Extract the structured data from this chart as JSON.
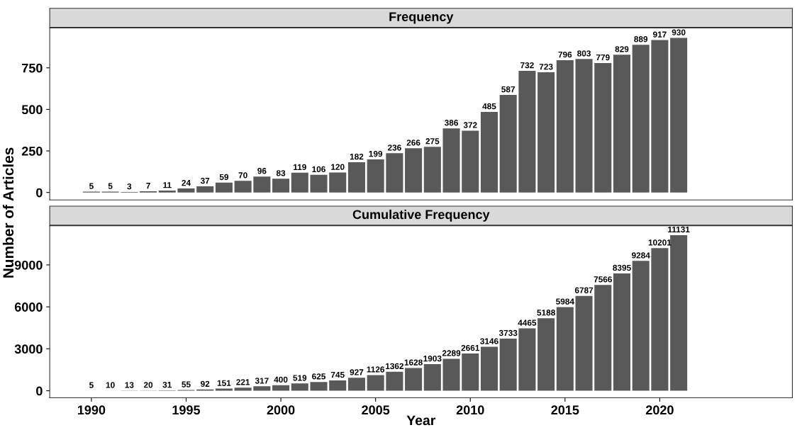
{
  "chart_data": [
    {
      "type": "bar",
      "title": "Frequency",
      "ylabel": "Number of Articles",
      "x": [
        1990,
        1991,
        1992,
        1993,
        1994,
        1995,
        1996,
        1997,
        1998,
        1999,
        2000,
        2001,
        2002,
        2003,
        2004,
        2005,
        2006,
        2007,
        2008,
        2009,
        2010,
        2011,
        2012,
        2013,
        2014,
        2015,
        2016,
        2017,
        2018,
        2019,
        2020,
        2021
      ],
      "values": [
        5,
        5,
        3,
        7,
        11,
        24,
        37,
        59,
        70,
        96,
        83,
        119,
        106,
        120,
        182,
        199,
        236,
        266,
        275,
        386,
        372,
        485,
        587,
        732,
        723,
        796,
        803,
        779,
        829,
        889,
        917,
        930
      ],
      "color": "#595959",
      "data_labels": true,
      "xlim": [
        1987.8,
        2027
      ],
      "xticks": [
        1990,
        1995,
        2000,
        2005,
        2010,
        2015,
        2020
      ],
      "ylim": [
        -45,
        990
      ],
      "yticks": [
        0,
        250,
        500,
        750
      ],
      "tick_labels": "y",
      "grid": false
    },
    {
      "type": "bar",
      "title": "Cumulative Frequency",
      "xlabel": "Year",
      "x": [
        1990,
        1991,
        1992,
        1993,
        1994,
        1995,
        1996,
        1997,
        1998,
        1999,
        2000,
        2001,
        2002,
        2003,
        2004,
        2005,
        2006,
        2007,
        2008,
        2009,
        2010,
        2011,
        2012,
        2013,
        2014,
        2015,
        2016,
        2017,
        2018,
        2019,
        2020,
        2021
      ],
      "values": [
        5,
        10,
        13,
        20,
        31,
        55,
        92,
        151,
        221,
        317,
        400,
        519,
        625,
        745,
        927,
        1126,
        1362,
        1628,
        1903,
        2289,
        2661,
        3146,
        3733,
        4465,
        5188,
        5984,
        6787,
        7566,
        8395,
        9284,
        10201,
        11131
      ],
      "color": "#595959",
      "data_labels": true,
      "xlim": [
        1987.8,
        2027
      ],
      "xticks": [
        1990,
        1995,
        2000,
        2005,
        2010,
        2015,
        2020
      ],
      "ylim": [
        -500,
        11800
      ],
      "yticks": [
        0,
        3000,
        6000,
        9000
      ],
      "grid": false
    }
  ]
}
